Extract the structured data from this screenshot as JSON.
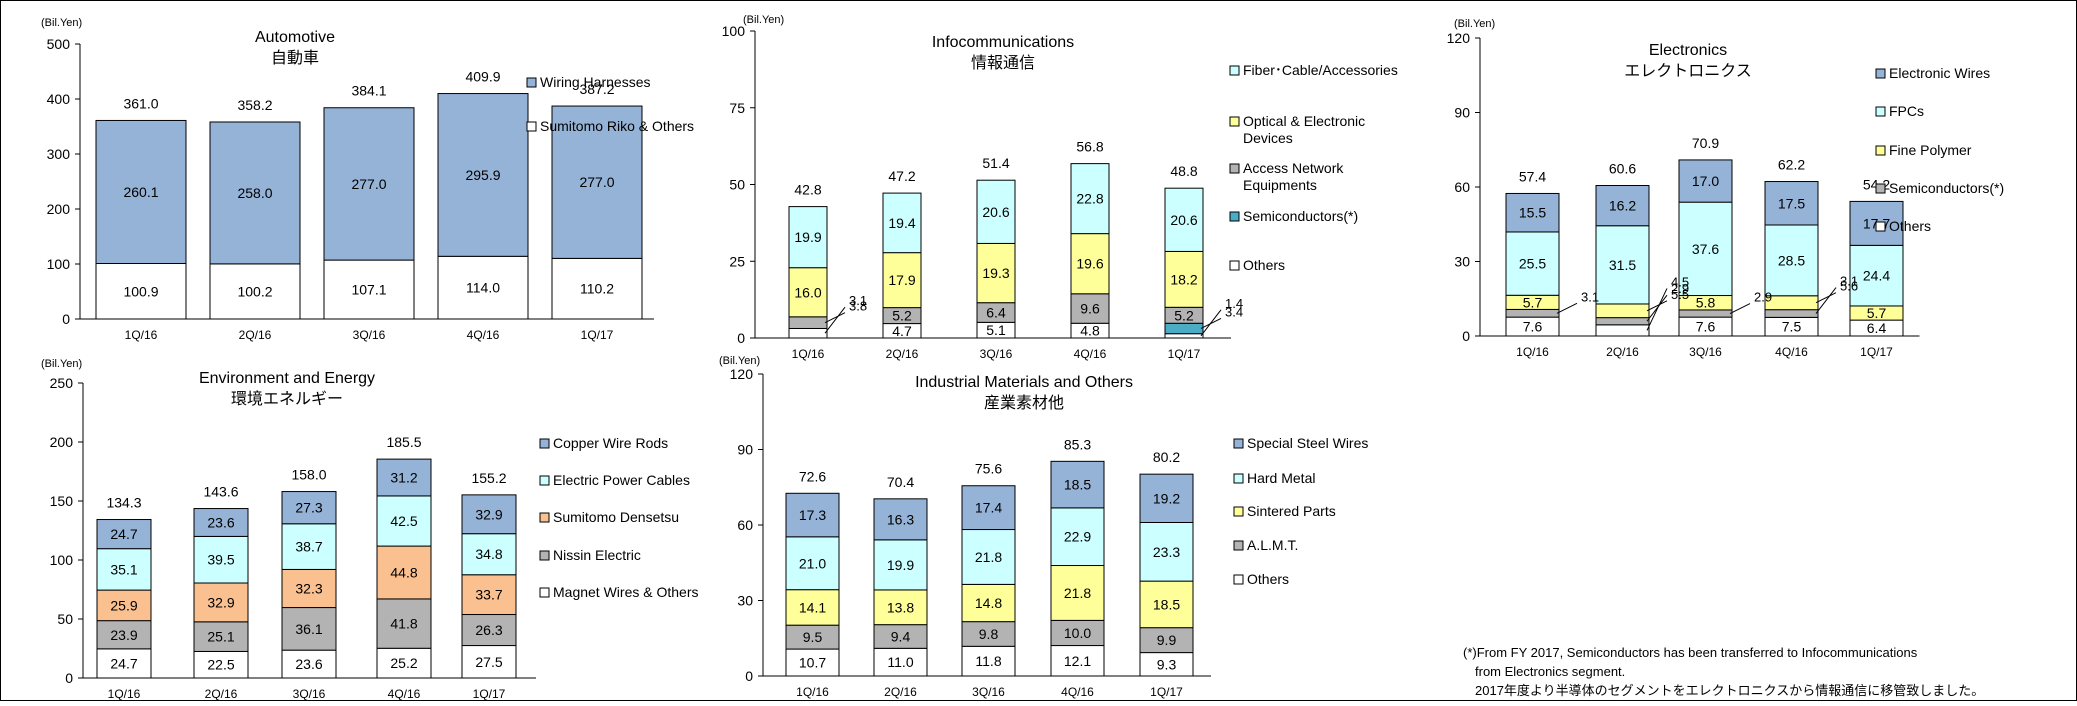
{
  "colors": {
    "blue": "#95b3d7",
    "cyan": "#ccffff",
    "yellow": "#ffff99",
    "gray": "#b3b3b3",
    "orange": "#fac090",
    "white": "#ffffff",
    "border": "#000000"
  },
  "footnote": {
    "en_line1": "(*)From FY 2017, Semiconductors has been transferred  to Infocommunications",
    "en_line2": "from Electronics segment.",
    "jp": "2017年度より半導体のセグメントをエレクトロニクスから情報通信に移管致しました。"
  },
  "chart_data": [
    {
      "id": "automotive",
      "type": "bar",
      "stacked": true,
      "title": "Automotive",
      "subtitle": "自動車",
      "unit": "(Bil.Yen)",
      "categories": [
        "1Q/16",
        "2Q/16",
        "3Q/16",
        "4Q/16",
        "1Q/17"
      ],
      "ylim": [
        0,
        500
      ],
      "yticks": [
        0,
        100,
        200,
        300,
        400,
        500
      ],
      "totals": [
        "361.0",
        "358.2",
        "384.1",
        "409.9",
        "387.2"
      ],
      "legend_position": "right",
      "series": [
        {
          "name": "Sumitomo Riko & Others",
          "color": "white",
          "values": [
            100.9,
            100.2,
            107.1,
            114.0,
            110.2
          ]
        },
        {
          "name": "Wiring Harnesses",
          "color": "blue",
          "values": [
            260.1,
            258.0,
            277.0,
            295.9,
            277.0
          ]
        }
      ]
    },
    {
      "id": "infocommunications",
      "type": "bar",
      "stacked": true,
      "title": "Infocommunications",
      "subtitle": "情報通信",
      "unit": "(Bil.Yen)",
      "categories": [
        "1Q/16",
        "2Q/16",
        "3Q/16",
        "4Q/16",
        "1Q/17"
      ],
      "ylim": [
        0,
        100
      ],
      "yticks": [
        0,
        25,
        50,
        75,
        100
      ],
      "totals": [
        "42.8",
        "47.2",
        "51.4",
        "56.8",
        "48.8"
      ],
      "legend_position": "right",
      "series": [
        {
          "name": "Others",
          "color": "white",
          "values": [
            3.1,
            4.7,
            5.1,
            4.8,
            1.4
          ]
        },
        {
          "name": "Semiconductors(*)",
          "color": "teal",
          "values": [
            0,
            0,
            0,
            0,
            3.4
          ]
        },
        {
          "name": "Access Network Equipments",
          "color": "gray",
          "values": [
            3.8,
            5.2,
            6.4,
            9.6,
            5.2
          ]
        },
        {
          "name": "Optical & Electronic Devices",
          "color": "yellow",
          "values": [
            16.0,
            17.9,
            19.3,
            19.6,
            18.2
          ]
        },
        {
          "name": "Fiber･Cable/Accessories",
          "color": "cyan",
          "values": [
            19.9,
            19.4,
            20.6,
            22.8,
            20.6
          ]
        }
      ]
    },
    {
      "id": "electronics",
      "type": "bar",
      "stacked": true,
      "title": "Electronics",
      "subtitle": "エレクトロニクス",
      "unit": "(Bil.Yen)",
      "categories": [
        "1Q/16",
        "2Q/16",
        "3Q/16",
        "4Q/16",
        "1Q/17"
      ],
      "ylim": [
        0,
        120
      ],
      "yticks": [
        0,
        30,
        60,
        90,
        120
      ],
      "totals": [
        "57.4",
        "60.6",
        "70.9",
        "62.2",
        "54.2"
      ],
      "legend_position": "right",
      "series": [
        {
          "name": "Others",
          "color": "white",
          "values": [
            7.6,
            4.5,
            7.6,
            7.5,
            6.4
          ]
        },
        {
          "name": "Semiconductors(*)",
          "color": "gray",
          "values": [
            3.1,
            2.9,
            2.9,
            3.1,
            0
          ]
        },
        {
          "name": "Fine Polymer",
          "color": "yellow",
          "values": [
            5.7,
            5.5,
            5.8,
            5.6,
            5.7
          ]
        },
        {
          "name": "FPCs",
          "color": "cyan",
          "values": [
            25.5,
            31.5,
            37.6,
            28.5,
            24.4
          ]
        },
        {
          "name": "Electronic Wires",
          "color": "blue",
          "values": [
            15.5,
            16.2,
            17.0,
            17.5,
            17.7
          ]
        }
      ]
    },
    {
      "id": "environment",
      "type": "bar",
      "stacked": true,
      "title": "Environment and Energy",
      "subtitle": "環境エネルギー",
      "unit": "(Bil.Yen)",
      "categories": [
        "1Q/16",
        "2Q/16",
        "3Q/16",
        "4Q/16",
        "1Q/17"
      ],
      "ylim": [
        0,
        250
      ],
      "yticks": [
        0,
        50,
        100,
        150,
        200,
        250
      ],
      "totals": [
        "134.3",
        "143.6",
        "158.0",
        "185.5",
        "155.2"
      ],
      "legend_position": "right",
      "series": [
        {
          "name": "Magnet Wires & Others",
          "color": "white",
          "values": [
            24.7,
            22.5,
            23.6,
            25.2,
            27.5
          ]
        },
        {
          "name": "Nissin Electric",
          "color": "gray",
          "values": [
            23.9,
            25.1,
            36.1,
            41.8,
            26.3
          ]
        },
        {
          "name": "Sumitomo Densetsu",
          "color": "orange",
          "values": [
            25.9,
            32.9,
            32.3,
            44.8,
            33.7
          ]
        },
        {
          "name": "Electric Power Cables",
          "color": "cyan",
          "values": [
            35.1,
            39.5,
            38.7,
            42.5,
            34.8
          ]
        },
        {
          "name": "Copper Wire Rods",
          "color": "blue",
          "values": [
            24.7,
            23.6,
            27.3,
            31.2,
            32.9
          ]
        }
      ]
    },
    {
      "id": "industrial",
      "type": "bar",
      "stacked": true,
      "title": "Industrial Materials and Others",
      "subtitle": "産業素材他",
      "unit": "(Bil.Yen)",
      "categories": [
        "1Q/16",
        "2Q/16",
        "3Q/16",
        "4Q/16",
        "1Q/17"
      ],
      "ylim": [
        0,
        120
      ],
      "yticks": [
        0,
        30,
        60,
        90,
        120
      ],
      "totals": [
        "72.6",
        "70.4",
        "75.6",
        "85.3",
        "80.2"
      ],
      "legend_position": "right",
      "series": [
        {
          "name": "Others",
          "color": "white",
          "values": [
            10.7,
            11.0,
            11.8,
            12.1,
            9.3
          ]
        },
        {
          "name": "A.L.M.T.",
          "color": "gray",
          "values": [
            9.5,
            9.4,
            9.8,
            10.0,
            9.9
          ]
        },
        {
          "name": "Sintered Parts",
          "color": "yellow",
          "values": [
            14.1,
            13.8,
            14.8,
            21.8,
            18.5
          ]
        },
        {
          "name": "Hard Metal",
          "color": "cyan",
          "values": [
            21.0,
            19.9,
            21.8,
            22.9,
            23.3
          ]
        },
        {
          "name": "Special Steel Wires",
          "color": "blue",
          "values": [
            17.3,
            16.3,
            17.4,
            18.5,
            19.2
          ]
        }
      ]
    }
  ]
}
